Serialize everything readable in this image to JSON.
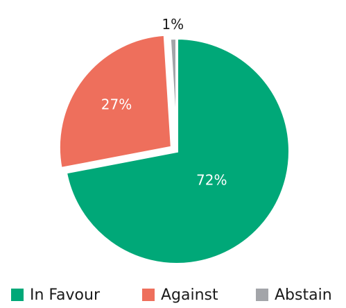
{
  "chart_data": {
    "type": "pie",
    "title": "",
    "slices": [
      {
        "label": "In Favour",
        "value": 72,
        "display": "72%",
        "color": "#00A878",
        "label_color": "#ffffff"
      },
      {
        "label": "Against",
        "value": 27,
        "display": "27%",
        "color": "#EE6F5C",
        "label_color": "#ffffff"
      },
      {
        "label": "Abstain",
        "value": 1,
        "display": "1%",
        "color": "#A3A5A9",
        "label_color": "#1a1a1a"
      }
    ],
    "exploded_slice": "Against",
    "start_angle": "12 o'clock, clockwise",
    "legend": {
      "position": "bottom"
    }
  }
}
